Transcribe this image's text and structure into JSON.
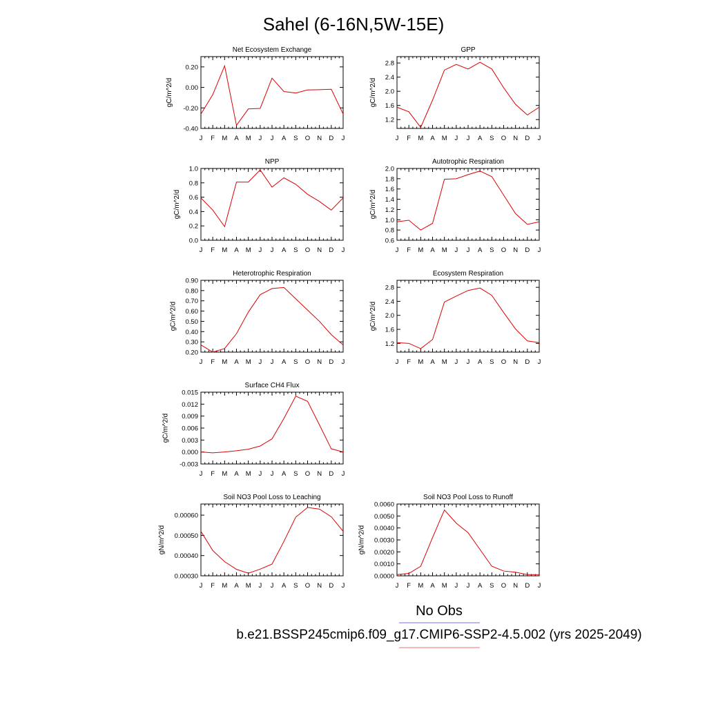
{
  "figure": {
    "title": "Sahel (6-16N,5W-15E)",
    "legend": [
      {
        "label": "No Obs",
        "color": "#7070ee"
      },
      {
        "label": "b.e21.BSSP245cmip6.f09_g17.CMIP6-SSP2-4.5.002 (yrs 2025-2049)",
        "color": "#ee7070"
      }
    ],
    "series_color": "#dd0000"
  },
  "chart_data": [
    {
      "type": "line",
      "title": "Net Ecosystem Exchange",
      "ylabel": "gC/m^2/d",
      "x": [
        "J",
        "F",
        "M",
        "A",
        "M",
        "J",
        "J",
        "A",
        "S",
        "O",
        "N",
        "D",
        "J"
      ],
      "values": [
        -0.26,
        -0.07,
        0.21,
        -0.37,
        -0.21,
        -0.205,
        0.09,
        -0.04,
        -0.055,
        -0.025,
        -0.022,
        -0.018,
        -0.26
      ],
      "ylim": [
        -0.4,
        0.3
      ],
      "yticks": [
        "0.20",
        "0.00",
        "-0.20",
        "-0.40"
      ],
      "ytick_values": [
        0.2,
        0.0,
        -0.2,
        -0.4
      ]
    },
    {
      "type": "line",
      "title": "GPP",
      "ylabel": "gC/m^2/d",
      "x": [
        "J",
        "F",
        "M",
        "A",
        "M",
        "J",
        "J",
        "A",
        "S",
        "O",
        "N",
        "D",
        "J"
      ],
      "values": [
        1.55,
        1.42,
        0.98,
        1.75,
        2.6,
        2.76,
        2.63,
        2.82,
        2.63,
        2.1,
        1.63,
        1.33,
        1.55
      ],
      "ylim": [
        0.95,
        2.98
      ],
      "yticks": [
        "2.8",
        "2.4",
        "2.0",
        "1.6",
        "1.2"
      ],
      "ytick_values": [
        2.8,
        2.4,
        2.0,
        1.6,
        1.2
      ]
    },
    {
      "type": "line",
      "title": "NPP",
      "ylabel": "gC/m^2/d",
      "x": [
        "J",
        "F",
        "M",
        "A",
        "M",
        "J",
        "J",
        "A",
        "S",
        "O",
        "N",
        "D",
        "J"
      ],
      "values": [
        0.59,
        0.42,
        0.19,
        0.81,
        0.81,
        0.98,
        0.74,
        0.87,
        0.78,
        0.64,
        0.54,
        0.42,
        0.59
      ],
      "ylim": [
        0.0,
        1.0
      ],
      "yticks": [
        "1.0",
        "0.8",
        "0.6",
        "0.4",
        "0.2",
        "0.0"
      ],
      "ytick_values": [
        1.0,
        0.8,
        0.6,
        0.4,
        0.2,
        0.0
      ]
    },
    {
      "type": "line",
      "title": "Autotrophic Respiration",
      "ylabel": "gC/m^2/d",
      "x": [
        "J",
        "F",
        "M",
        "A",
        "M",
        "J",
        "J",
        "A",
        "S",
        "O",
        "N",
        "D",
        "J"
      ],
      "values": [
        0.96,
        0.99,
        0.8,
        0.93,
        1.79,
        1.8,
        1.88,
        1.95,
        1.84,
        1.48,
        1.12,
        0.91,
        0.96
      ],
      "ylim": [
        0.6,
        2.0
      ],
      "yticks": [
        "2.0",
        "1.8",
        "1.6",
        "1.4",
        "1.2",
        "1.0",
        "0.8",
        "0.6"
      ],
      "ytick_values": [
        2.0,
        1.8,
        1.6,
        1.4,
        1.2,
        1.0,
        0.8,
        0.6
      ]
    },
    {
      "type": "line",
      "title": "Heterotrophic Respiration",
      "ylabel": "gC/m^2/d",
      "x": [
        "J",
        "F",
        "M",
        "A",
        "M",
        "J",
        "J",
        "A",
        "S",
        "O",
        "N",
        "D",
        "J"
      ],
      "values": [
        0.27,
        0.2,
        0.235,
        0.38,
        0.59,
        0.76,
        0.82,
        0.83,
        0.72,
        0.61,
        0.5,
        0.37,
        0.27
      ],
      "ylim": [
        0.2,
        0.9
      ],
      "yticks": [
        "0.90",
        "0.80",
        "0.70",
        "0.60",
        "0.50",
        "0.40",
        "0.30",
        "0.20"
      ],
      "ytick_values": [
        0.9,
        0.8,
        0.7,
        0.6,
        0.5,
        0.4,
        0.3,
        0.2
      ]
    },
    {
      "type": "line",
      "title": "Ecosystem Respiration",
      "ylabel": "gC/m^2/d",
      "x": [
        "J",
        "F",
        "M",
        "A",
        "M",
        "J",
        "J",
        "A",
        "S",
        "O",
        "N",
        "D",
        "J"
      ],
      "values": [
        1.22,
        1.2,
        1.05,
        1.31,
        2.38,
        2.55,
        2.71,
        2.78,
        2.57,
        2.08,
        1.61,
        1.27,
        1.22
      ],
      "ylim": [
        0.95,
        3.0
      ],
      "yticks": [
        "2.8",
        "2.4",
        "2.0",
        "1.6",
        "1.2"
      ],
      "ytick_values": [
        2.8,
        2.4,
        2.0,
        1.6,
        1.2
      ]
    },
    {
      "type": "line",
      "title": "Surface CH4 Flux",
      "ylabel": "gC/m^2/d",
      "x": [
        "J",
        "F",
        "M",
        "A",
        "M",
        "J",
        "J",
        "A",
        "S",
        "O",
        "N",
        "D",
        "J"
      ],
      "values": [
        0.0,
        -0.0002,
        0.0,
        0.0003,
        0.0007,
        0.0015,
        0.0033,
        0.0084,
        0.014,
        0.0127,
        0.0068,
        0.0008,
        0.0
      ],
      "ylim": [
        -0.003,
        0.015
      ],
      "yticks": [
        "0.015",
        "0.012",
        "0.009",
        "0.006",
        "0.003",
        "0.000",
        "-0.003"
      ],
      "ytick_values": [
        0.015,
        0.012,
        0.009,
        0.006,
        0.003,
        0.0,
        -0.003
      ]
    },
    {
      "type": "line",
      "title": "Soil NO3 Pool Loss to Leaching",
      "ylabel": "gN/m^2/d",
      "x": [
        "J",
        "F",
        "M",
        "A",
        "M",
        "J",
        "J",
        "A",
        "S",
        "O",
        "N",
        "D",
        "J"
      ],
      "values": [
        0.00052,
        0.000425,
        0.00037,
        0.000332,
        0.000313,
        0.000333,
        0.000358,
        0.00047,
        0.00059,
        0.000638,
        0.00063,
        0.000592,
        0.00052
      ],
      "ylim": [
        0.0003,
        0.000655
      ],
      "yticks": [
        "0.00060",
        "0.00050",
        "0.00040",
        "0.00030"
      ],
      "ytick_values": [
        0.0006,
        0.0005,
        0.0004,
        0.0003
      ]
    },
    {
      "type": "line",
      "title": "Soil NO3 Pool Loss to Runoff",
      "ylabel": "gN/m^2/d",
      "x": [
        "J",
        "F",
        "M",
        "A",
        "M",
        "J",
        "J",
        "A",
        "S",
        "O",
        "N",
        "D",
        "J"
      ],
      "values": [
        0.0001,
        0.0002,
        0.0008,
        0.0032,
        0.0055,
        0.0044,
        0.0036,
        0.0022,
        0.0008,
        0.0004,
        0.0003,
        0.0001,
        0.0001
      ],
      "ylim": [
        0.0,
        0.006
      ],
      "yticks": [
        "0.0060",
        "0.0050",
        "0.0040",
        "0.0030",
        "0.0020",
        "0.0010",
        "0.0000"
      ],
      "ytick_values": [
        0.006,
        0.005,
        0.004,
        0.003,
        0.002,
        0.001,
        0.0
      ]
    }
  ]
}
